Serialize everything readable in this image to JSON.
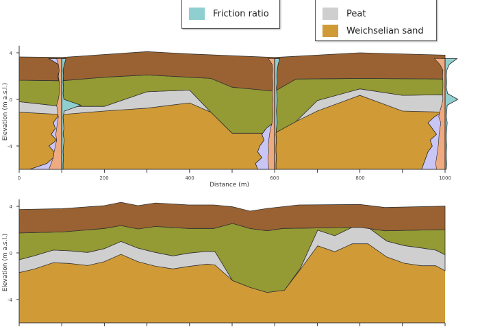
{
  "legend_left": {
    "items": [
      {
        "label": "Friction ratio",
        "color": "#8fcfcf"
      }
    ]
  },
  "legend_right": {
    "items": [
      {
        "label": "Peat",
        "color": "#cfcfcf"
      },
      {
        "label": "Weichselian sand",
        "color": "#d09a36"
      }
    ]
  },
  "colors": {
    "clay_top": "#9a6232",
    "green_layer": "#949a34",
    "peat": "#cfcfcf",
    "sand": "#d09a36",
    "cone": "#c9c5f5",
    "sleeve": "#eeaa80",
    "friction": "#8fcfcf"
  },
  "top_panel": {
    "xlabel": "Distance (m)",
    "ylabel": "Elevation (m a.s.l.)",
    "xticks": [
      "0",
      "200",
      "400",
      "600",
      "800",
      "1000"
    ],
    "yticks": [
      "4",
      "0",
      "-4"
    ],
    "ylim": [
      -6,
      5
    ],
    "xlim": [
      0,
      1000
    ],
    "surface": [
      [
        0,
        3.65
      ],
      [
        100,
        3.6
      ],
      [
        300,
        4.1
      ],
      [
        400,
        3.9
      ],
      [
        500,
        3.75
      ],
      [
        600,
        3.6
      ],
      [
        800,
        4.0
      ],
      [
        1000,
        3.8
      ]
    ],
    "brown_base": [
      [
        0,
        1.65
      ],
      [
        100,
        1.6
      ],
      [
        200,
        1.9
      ],
      [
        300,
        2.1
      ],
      [
        400,
        1.9
      ],
      [
        450,
        1.8
      ],
      [
        500,
        1.05
      ],
      [
        600,
        0.7
      ],
      [
        650,
        1.75
      ],
      [
        800,
        1.8
      ],
      [
        1000,
        1.75
      ]
    ],
    "green_base": [
      [
        0,
        -0.2
      ],
      [
        100,
        -0.6
      ],
      [
        200,
        -0.6
      ],
      [
        300,
        0.65
      ],
      [
        400,
        0.8
      ],
      [
        450,
        -1.1
      ],
      [
        500,
        -2.9
      ],
      [
        600,
        -2.9
      ],
      [
        650,
        -1.9
      ],
      [
        700,
        -0.1
      ],
      [
        800,
        0.9
      ],
      [
        900,
        0.35
      ],
      [
        1000,
        0.4
      ]
    ],
    "sand_top": [
      [
        0,
        -1.1
      ],
      [
        100,
        -1.3
      ],
      [
        200,
        -1.0
      ],
      [
        300,
        -0.75
      ],
      [
        400,
        -0.3
      ],
      [
        450,
        -1.1
      ],
      [
        500,
        -2.9
      ],
      [
        600,
        -2.9
      ],
      [
        650,
        -1.9
      ],
      [
        700,
        -1.0
      ],
      [
        800,
        0.35
      ],
      [
        900,
        -1.0
      ],
      [
        1000,
        -1.1
      ]
    ],
    "cpts": [
      {
        "at": 100,
        "top": 3.5,
        "cone": [
          30,
          8,
          4,
          10,
          6,
          4,
          5,
          4,
          5,
          6,
          10,
          20,
          15,
          25,
          12,
          30,
          18,
          20,
          35,
          75
        ],
        "sleeve": [
          12,
          8,
          6,
          8,
          6,
          5,
          6,
          8,
          12,
          10,
          8,
          10,
          12,
          14,
          12,
          15,
          18,
          20,
          25,
          30
        ],
        "friction": [
          10,
          6,
          3,
          4,
          3,
          4,
          3,
          5,
          45,
          6,
          3,
          4,
          5,
          3,
          6,
          4,
          3,
          4,
          3,
          3
        ]
      },
      {
        "at": 600,
        "top": 3.5,
        "cone": [
          5,
          3,
          3,
          3,
          3,
          3,
          3,
          3,
          3,
          3,
          3,
          3,
          20,
          30,
          25,
          35,
          40,
          30,
          45,
          40
        ],
        "sleeve": [
          15,
          6,
          5,
          6,
          5,
          5,
          6,
          5,
          6,
          5,
          5,
          6,
          10,
          12,
          14,
          15,
          14,
          16,
          15,
          14
        ],
        "friction": [
          12,
          8,
          6,
          5,
          6,
          4,
          5,
          6,
          5,
          4,
          5,
          6,
          4,
          3,
          4,
          3,
          3,
          4,
          3,
          3
        ]
      },
      {
        "at": 1000,
        "top": 3.5,
        "cone": [
          8,
          5,
          3,
          3,
          3,
          3,
          3,
          3,
          3,
          3,
          25,
          40,
          30,
          20,
          35,
          30,
          40,
          45,
          50,
          55
        ],
        "sleeve": [
          25,
          12,
          5,
          6,
          5,
          5,
          6,
          5,
          8,
          12,
          15,
          10,
          12,
          14,
          15,
          16,
          18,
          20,
          22,
          20
        ],
        "friction": [
          28,
          10,
          4,
          3,
          4,
          3,
          6,
          30,
          5,
          4,
          3,
          5,
          4,
          3,
          3,
          4,
          3,
          3,
          4,
          3
        ]
      }
    ]
  },
  "bottom_panel": {
    "yticks": [
      "4",
      "0",
      "-4"
    ],
    "ylabel": "Elevation (m a.s.l.)",
    "ylim": [
      -6,
      5
    ],
    "xlim": [
      0,
      1000
    ],
    "surface": [
      [
        0,
        3.73
      ],
      [
        102,
        3.8
      ],
      [
        200,
        4.06
      ],
      [
        239,
        4.35
      ],
      [
        279,
        4.06
      ],
      [
        320,
        4.29
      ],
      [
        398,
        4.12
      ],
      [
        457,
        4.12
      ],
      [
        501,
        3.96
      ],
      [
        542,
        3.59
      ],
      [
        582,
        3.82
      ],
      [
        656,
        4.12
      ],
      [
        800,
        4.16
      ],
      [
        859,
        3.9
      ],
      [
        1000,
        4.02
      ]
    ],
    "brown_base": [
      [
        0,
        1.71
      ],
      [
        102,
        1.8
      ],
      [
        200,
        2.1
      ],
      [
        239,
        2.35
      ],
      [
        279,
        2.06
      ],
      [
        320,
        2.27
      ],
      [
        398,
        2.1
      ],
      [
        457,
        2.1
      ],
      [
        501,
        2.53
      ],
      [
        542,
        2.1
      ],
      [
        582,
        1.9
      ],
      [
        619,
        2.1
      ],
      [
        800,
        2.2
      ],
      [
        859,
        1.9
      ],
      [
        1000,
        2.0
      ]
    ],
    "green_base": [
      [
        0,
        -0.59
      ],
      [
        35,
        -0.25
      ],
      [
        80,
        0.24
      ],
      [
        117,
        0.18
      ],
      [
        161,
        0.04
      ],
      [
        200,
        0.37
      ],
      [
        239,
        0.98
      ],
      [
        279,
        0.41
      ],
      [
        320,
        0.04
      ],
      [
        361,
        -0.25
      ],
      [
        398,
        -0.02
      ],
      [
        442,
        0.14
      ],
      [
        460,
        0.1
      ],
      [
        501,
        -2.37
      ],
      [
        542,
        -2.96
      ],
      [
        582,
        -3.39
      ],
      [
        623,
        -3.2
      ],
      [
        660,
        -1.33
      ],
      [
        701,
        1.96
      ],
      [
        741,
        1.47
      ],
      [
        782,
        2.2
      ],
      [
        819,
        2.2
      ],
      [
        863,
        1.02
      ],
      [
        904,
        0.63
      ],
      [
        944,
        0.43
      ],
      [
        978,
        0.24
      ],
      [
        1000,
        -0.16
      ]
    ],
    "sand_top": [
      [
        0,
        -1.69
      ],
      [
        35,
        -1.39
      ],
      [
        80,
        -0.84
      ],
      [
        117,
        -0.9
      ],
      [
        161,
        -1.08
      ],
      [
        200,
        -0.75
      ],
      [
        239,
        -0.12
      ],
      [
        279,
        -0.75
      ],
      [
        320,
        -1.14
      ],
      [
        361,
        -1.37
      ],
      [
        398,
        -1.16
      ],
      [
        442,
        -0.96
      ],
      [
        460,
        -1.04
      ],
      [
        501,
        -2.37
      ],
      [
        542,
        -2.96
      ],
      [
        582,
        -3.39
      ],
      [
        623,
        -3.2
      ],
      [
        660,
        -1.43
      ],
      [
        701,
        0.61
      ],
      [
        741,
        0.1
      ],
      [
        782,
        0.78
      ],
      [
        819,
        0.78
      ],
      [
        863,
        -0.35
      ],
      [
        904,
        -0.88
      ],
      [
        944,
        -1.1
      ],
      [
        978,
        -1.1
      ],
      [
        1000,
        -1.53
      ]
    ]
  }
}
